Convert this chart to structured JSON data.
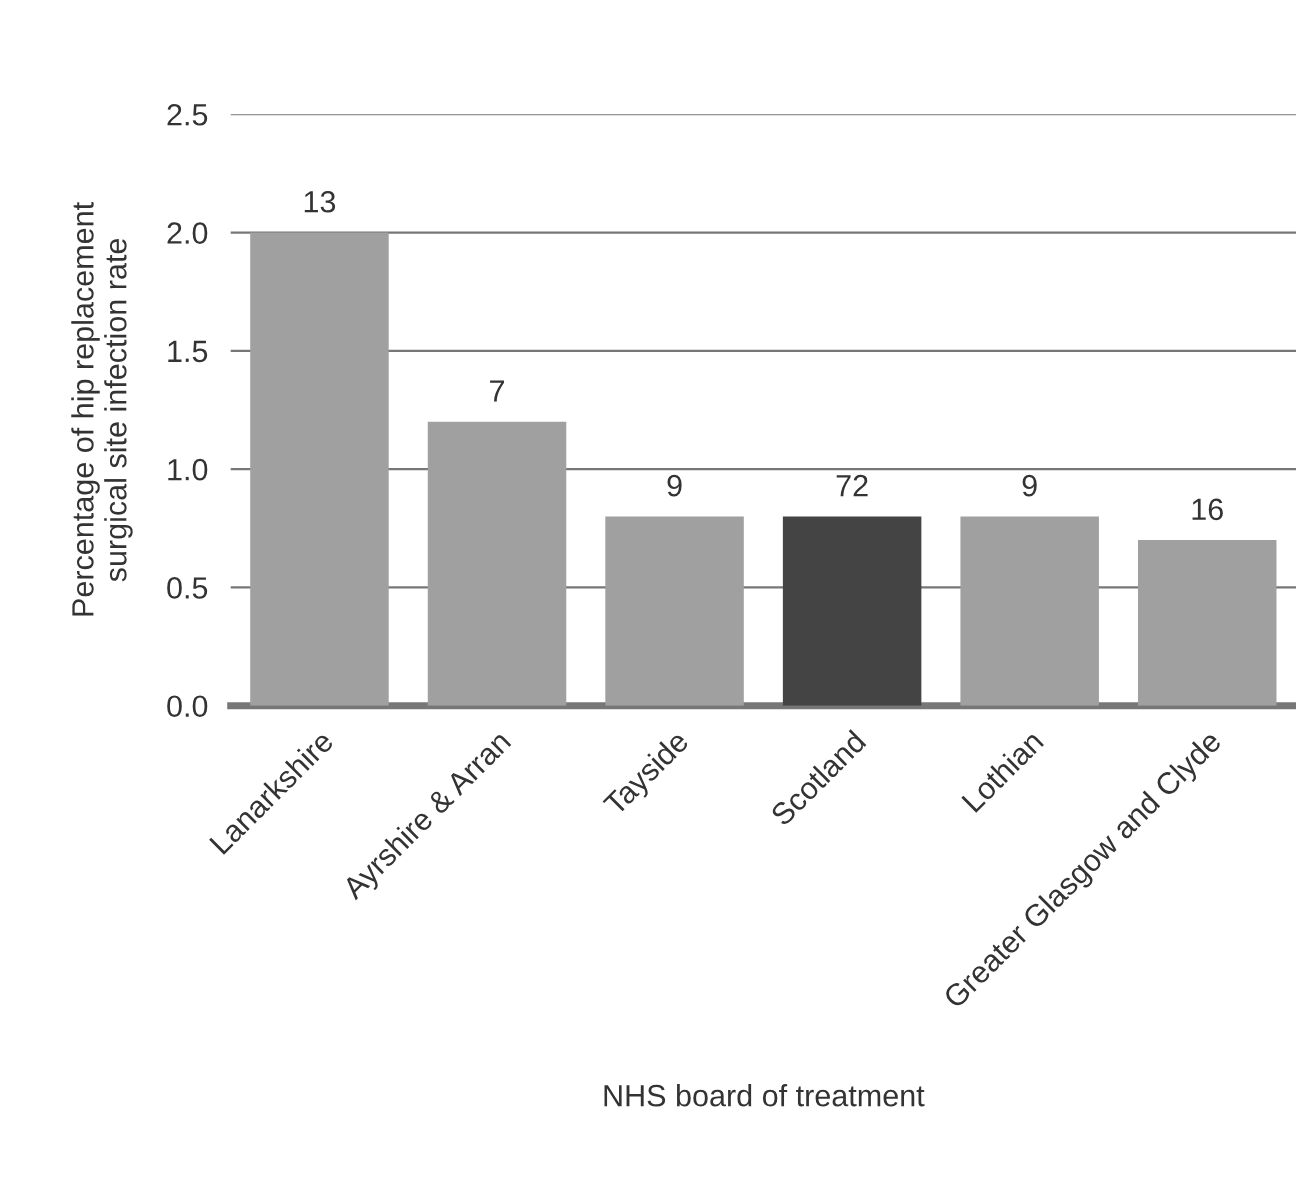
{
  "chart_data": {
    "type": "bar",
    "xlabel": "NHS board of treatment",
    "ylabel": "Percentage of hip replacement\nsurgical site infection rate",
    "categories": [
      "Lanarkshire",
      "Ayrshire & Arran",
      "Tayside",
      "Scotland",
      "Lothian",
      "Greater Glasgow and Clyde"
    ],
    "values": [
      2.0,
      1.2,
      0.8,
      0.8,
      0.8,
      0.7
    ],
    "colors": [
      "#a0a0a0",
      "#a0a0a0",
      "#a0a0a0",
      "#444444",
      "#a0a0a0",
      "#a0a0a0"
    ],
    "annotations": [
      {
        "text": "13",
        "x": "Lanarkshire",
        "y": 2.0
      },
      {
        "text": "7",
        "x": "Ayrshire & Arran",
        "y": 1.2
      },
      {
        "text": "9",
        "x": "Tayside",
        "y": 0.8
      },
      {
        "text": "72",
        "x": "Scotland",
        "y": 0.8
      },
      {
        "text": "9",
        "x": "Lothian",
        "y": 0.8
      },
      {
        "text": "16",
        "x": "Greater Glasgow and Clyde",
        "y": 0.7
      }
    ],
    "ylim": [
      0,
      2.5
    ],
    "yticks": [
      {
        "value": 0,
        "label": "0.0"
      },
      {
        "value": 0.5,
        "label": "0.5"
      },
      {
        "value": 1,
        "label": "1.0"
      },
      {
        "value": 1.5,
        "label": "1.5"
      },
      {
        "value": 2,
        "label": "2.0"
      },
      {
        "value": 2.5,
        "label": "2.5"
      }
    ],
    "grid": "y",
    "legend": false
  }
}
